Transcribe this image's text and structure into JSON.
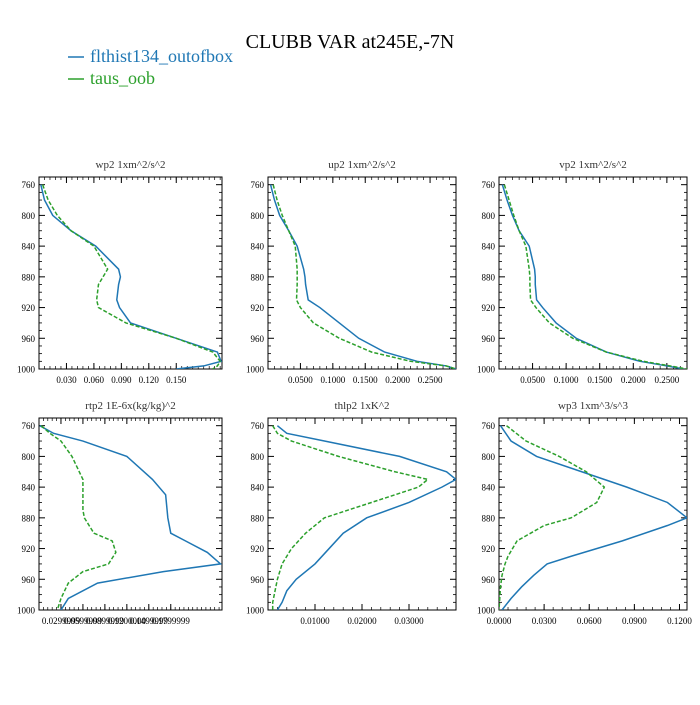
{
  "figure": {
    "title": "CLUBB VAR at245E,-7N",
    "legend": [
      {
        "label": "flthist134_outofbox",
        "color": "#1f77b4",
        "style": "solid"
      },
      {
        "label": "taus_oob",
        "color": "#2ca02c",
        "style": "dashed"
      }
    ]
  },
  "chart_data": [
    {
      "type": "line",
      "title": "wp2  1xm^2/s^2",
      "ylim": [
        1000,
        750
      ],
      "yticks": [
        "760",
        "800",
        "840",
        "880",
        "920",
        "960",
        "1000"
      ],
      "ytick_values": [
        760,
        800,
        840,
        880,
        920,
        960,
        1000
      ],
      "xlim": [
        0.0,
        0.2
      ],
      "xticks": [
        "0.030",
        "0.060",
        "0.090",
        "0.120",
        "0.150"
      ],
      "xtick_values": [
        0.03,
        0.06,
        0.09,
        0.12,
        0.15
      ],
      "series": [
        {
          "name": "flthist134_outofbox",
          "x": [
            0.002,
            0.006,
            0.015,
            0.035,
            0.062,
            0.087,
            0.089,
            0.087,
            0.085,
            0.088,
            0.1,
            0.15,
            0.195,
            0.199,
            0.18,
            0.15
          ],
          "y": [
            760,
            780,
            800,
            820,
            840,
            870,
            880,
            890,
            910,
            920,
            940,
            960,
            978,
            990,
            996,
            1000
          ]
        },
        {
          "name": "taus_oob",
          "x": [
            0.004,
            0.01,
            0.02,
            0.035,
            0.06,
            0.075,
            0.07,
            0.065,
            0.063,
            0.065,
            0.095,
            0.15,
            0.19,
            0.198,
            0.195,
            0.19
          ],
          "y": [
            760,
            780,
            800,
            820,
            840,
            870,
            880,
            890,
            910,
            920,
            940,
            960,
            978,
            990,
            996,
            1000
          ]
        }
      ]
    },
    {
      "type": "line",
      "title": "up2  1xm^2/s^2",
      "ylim": [
        1000,
        750
      ],
      "yticks": [
        "760",
        "800",
        "840",
        "880",
        "920",
        "960",
        "1000"
      ],
      "ytick_values": [
        760,
        800,
        840,
        880,
        920,
        960,
        1000
      ],
      "xlim": [
        0.0,
        0.29
      ],
      "xticks": [
        "0.0500",
        "0.1000",
        "0.1500",
        "0.2000",
        "0.2500"
      ],
      "xtick_values": [
        0.05,
        0.1,
        0.15,
        0.2,
        0.25
      ],
      "series": [
        {
          "name": "flthist134_outofbox",
          "x": [
            0.004,
            0.01,
            0.018,
            0.032,
            0.045,
            0.055,
            0.057,
            0.058,
            0.062,
            0.08,
            0.11,
            0.14,
            0.18,
            0.23,
            0.275,
            0.29
          ],
          "y": [
            760,
            780,
            800,
            820,
            840,
            870,
            880,
            890,
            910,
            920,
            940,
            960,
            978,
            990,
            996,
            1000
          ]
        },
        {
          "name": "taus_oob",
          "x": [
            0.008,
            0.014,
            0.022,
            0.032,
            0.042,
            0.045,
            0.045,
            0.045,
            0.044,
            0.05,
            0.07,
            0.11,
            0.16,
            0.22,
            0.275,
            0.29
          ],
          "y": [
            760,
            780,
            800,
            820,
            840,
            870,
            880,
            890,
            910,
            920,
            940,
            960,
            978,
            990,
            996,
            1000
          ]
        }
      ]
    },
    {
      "type": "line",
      "title": "vp2  1xm^2/s^2",
      "ylim": [
        1000,
        750
      ],
      "yticks": [
        "760",
        "800",
        "840",
        "880",
        "920",
        "960",
        "1000"
      ],
      "ytick_values": [
        760,
        800,
        840,
        880,
        920,
        960,
        1000
      ],
      "xlim": [
        0.0,
        0.28
      ],
      "xticks": [
        "0.0500",
        "0.1000",
        "0.1500",
        "0.2000",
        "0.2500"
      ],
      "xtick_values": [
        0.05,
        0.1,
        0.15,
        0.2,
        0.25
      ],
      "series": [
        {
          "name": "flthist134_outofbox",
          "x": [
            0.005,
            0.012,
            0.02,
            0.03,
            0.045,
            0.053,
            0.054,
            0.054,
            0.056,
            0.065,
            0.085,
            0.115,
            0.16,
            0.21,
            0.25,
            0.275
          ],
          "y": [
            760,
            780,
            800,
            820,
            840,
            870,
            880,
            890,
            910,
            920,
            940,
            960,
            978,
            990,
            996,
            1000
          ]
        },
        {
          "name": "taus_oob",
          "x": [
            0.008,
            0.015,
            0.022,
            0.03,
            0.04,
            0.045,
            0.046,
            0.046,
            0.047,
            0.055,
            0.075,
            0.11,
            0.16,
            0.215,
            0.255,
            0.28
          ],
          "y": [
            760,
            780,
            800,
            820,
            840,
            870,
            880,
            890,
            910,
            920,
            940,
            960,
            978,
            990,
            996,
            1000
          ]
        }
      ]
    },
    {
      "type": "line",
      "title": "rtp2  1E-6x(kg/kg)^2",
      "ylim": [
        1000,
        750
      ],
      "yticks": [
        "760",
        "800",
        "840",
        "880",
        "920",
        "960",
        "1000"
      ],
      "ytick_values": [
        760,
        800,
        840,
        880,
        920,
        960,
        1000
      ],
      "xlim": [
        0.0,
        0.25
      ],
      "xticks": [
        "0.0299999",
        "0.0599999",
        "0.0899999",
        "0.1200000",
        "0.1499999",
        "0.1799999"
      ],
      "xtick_values": [
        0.03,
        0.06,
        0.09,
        0.12,
        0.15,
        0.18
      ],
      "series": [
        {
          "name": "flthist134_outofbox",
          "x": [
            0.001,
            0.02,
            0.06,
            0.12,
            0.155,
            0.173,
            0.175,
            0.176,
            0.18,
            0.2,
            0.23,
            0.248,
            0.17,
            0.08,
            0.04,
            0.03
          ],
          "y": [
            760,
            770,
            780,
            800,
            830,
            850,
            870,
            880,
            900,
            910,
            925,
            940,
            950,
            965,
            985,
            1000
          ]
        },
        {
          "name": "taus_oob",
          "x": [
            0.003,
            0.015,
            0.03,
            0.045,
            0.06,
            0.06,
            0.06,
            0.062,
            0.075,
            0.1,
            0.105,
            0.095,
            0.06,
            0.04,
            0.03,
            0.025
          ],
          "y": [
            760,
            770,
            780,
            800,
            830,
            850,
            870,
            880,
            900,
            910,
            925,
            940,
            950,
            965,
            985,
            1000
          ]
        }
      ]
    },
    {
      "type": "line",
      "title": "thlp2  1xK^2",
      "ylim": [
        1000,
        750
      ],
      "yticks": [
        "760",
        "800",
        "840",
        "880",
        "920",
        "960",
        "1000"
      ],
      "ytick_values": [
        760,
        800,
        840,
        880,
        920,
        960,
        1000
      ],
      "xlim": [
        0.0,
        0.04
      ],
      "xticks": [
        "0.01000",
        "0.02000",
        "0.03000"
      ],
      "xtick_values": [
        0.01,
        0.02,
        0.03
      ],
      "series": [
        {
          "name": "flthist134_outofbox",
          "x": [
            0.002,
            0.004,
            0.012,
            0.028,
            0.038,
            0.04,
            0.037,
            0.03,
            0.021,
            0.016,
            0.013,
            0.01,
            0.006,
            0.004,
            0.003,
            0.002
          ],
          "y": [
            760,
            770,
            780,
            800,
            820,
            830,
            840,
            860,
            880,
            900,
            920,
            940,
            960,
            975,
            990,
            1000
          ]
        },
        {
          "name": "taus_oob",
          "x": [
            0.001,
            0.002,
            0.005,
            0.015,
            0.027,
            0.034,
            0.032,
            0.022,
            0.012,
            0.008,
            0.005,
            0.003,
            0.002,
            0.0015,
            0.001,
            0.001
          ],
          "y": [
            760,
            770,
            780,
            800,
            820,
            830,
            840,
            860,
            880,
            900,
            920,
            940,
            960,
            975,
            990,
            1000
          ]
        }
      ]
    },
    {
      "type": "line",
      "title": "wp3  1xm^3/s^3",
      "ylim": [
        1000,
        750
      ],
      "yticks": [
        "760",
        "800",
        "840",
        "880",
        "920",
        "960",
        "1000"
      ],
      "ytick_values": [
        760,
        800,
        840,
        880,
        920,
        960,
        1000
      ],
      "xlim": [
        0.0,
        0.125
      ],
      "xticks": [
        "0.0000",
        "0.0300",
        "0.0600",
        "0.0900",
        "0.1200"
      ],
      "xtick_values": [
        0.0,
        0.03,
        0.06,
        0.09,
        0.12
      ],
      "series": [
        {
          "name": "flthist134_outofbox",
          "x": [
            0.001,
            0.008,
            0.025,
            0.055,
            0.085,
            0.112,
            0.125,
            0.112,
            0.082,
            0.048,
            0.032,
            0.023,
            0.015,
            0.008,
            0.002
          ],
          "y": [
            760,
            780,
            800,
            820,
            840,
            860,
            880,
            890,
            910,
            930,
            940,
            955,
            970,
            985,
            1000
          ]
        },
        {
          "name": "taus_oob",
          "x": [
            0.005,
            0.018,
            0.04,
            0.058,
            0.07,
            0.065,
            0.048,
            0.03,
            0.012,
            0.006,
            0.004,
            0.002,
            0.001,
            0.0005,
            0.0
          ],
          "y": [
            760,
            780,
            800,
            820,
            840,
            860,
            880,
            890,
            910,
            930,
            940,
            955,
            970,
            985,
            1000
          ]
        }
      ]
    }
  ]
}
